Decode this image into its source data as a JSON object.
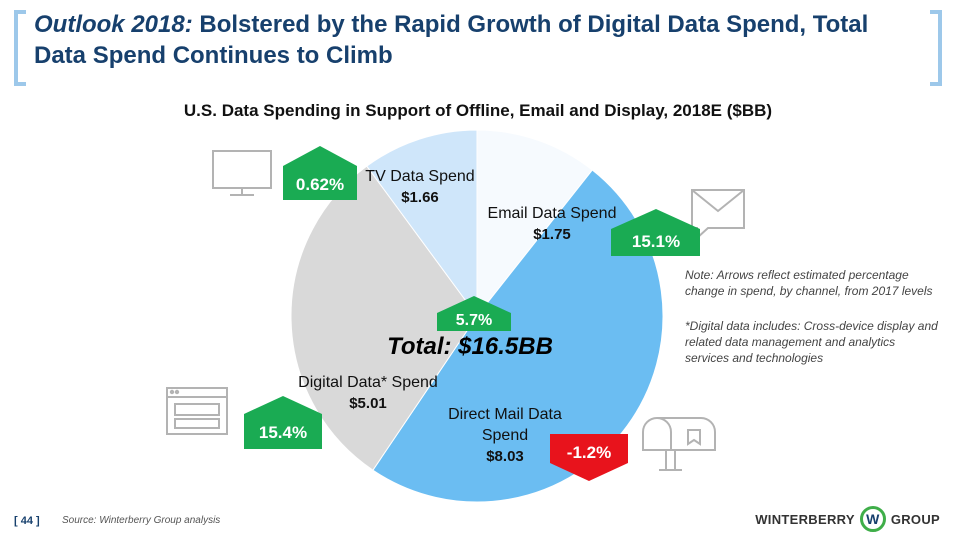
{
  "header": {
    "title_em": "Outlook 2018:",
    "title_rest": " Bolstered by the Rapid Growth of Digital Data Spend, Total Data Spend Continues to Climb"
  },
  "chart_data": {
    "type": "pie",
    "title": "U.S. Data Spending in Support of Offline, Email and Display, 2018E ($BB)",
    "slices": [
      {
        "name": "Email Data Spend",
        "value": 1.75,
        "value_label": "$1.75",
        "change": "15.1%",
        "direction": "up",
        "color": "#f6fafe"
      },
      {
        "name": "Direct Mail Data Spend",
        "value": 8.03,
        "value_label": "$8.03",
        "change": "-1.2%",
        "direction": "down",
        "color": "#6bbdf2"
      },
      {
        "name": "Digital Data* Spend",
        "value": 5.01,
        "value_label": "$5.01",
        "change": "15.4%",
        "direction": "up",
        "color": "#d9d9d9"
      },
      {
        "name": "TV Data Spend",
        "value": 1.66,
        "value_label": "$1.66",
        "change": "0.62%",
        "direction": "up",
        "color": "#cfe6fa"
      }
    ],
    "total_label": "Total: $16.5BB",
    "total_change": "5.7%"
  },
  "colors": {
    "up": "#1aab53",
    "down": "#e8131c",
    "brand": "#17406d",
    "bracket": "#9dc8ea"
  },
  "icons": [
    "tv-icon",
    "envelope-icon",
    "browser-window-icon",
    "mailbox-icon"
  ],
  "notes": {
    "arrows": "Note: Arrows reflect estimated percentage change in spend, by channel, from 2017 levels",
    "digital": "*Digital data includes: Cross-device display and related data management and analytics services and technologies"
  },
  "footer": {
    "page": "[ 44 ]",
    "source": "Source: Winterberry Group analysis",
    "logo_left": "WINTERBERRY",
    "logo_mark": "W",
    "logo_right": "GROUP"
  }
}
